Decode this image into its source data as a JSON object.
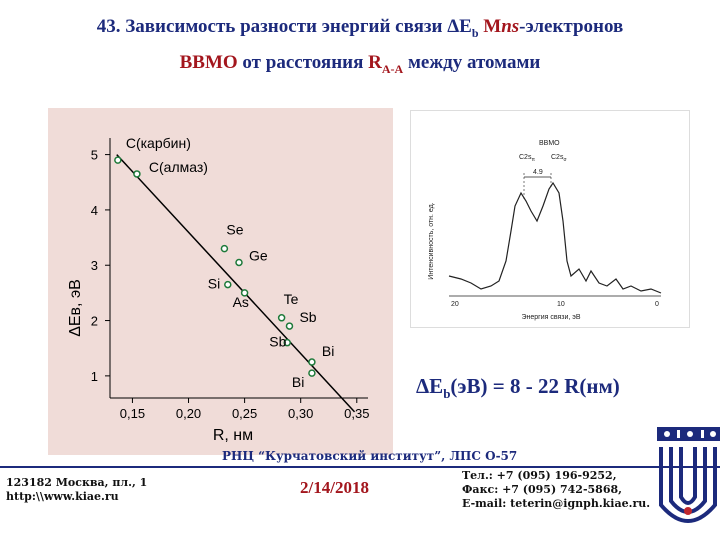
{
  "slide": {
    "title_line1_prefix": "43. Зависимость разности энергий связи ",
    "title_delta": "ΔE",
    "title_sub": "b",
    "title_m": " M",
    "title_ns": "ns",
    "title_line1_suffix": "-электронов",
    "title_vvmo": "ВВМО",
    "title_line2_mid": " от расстояния ",
    "title_r": "R",
    "title_rsub": "A-A",
    "title_line2_suffix": " между атомами",
    "formula_prefix": "ΔE",
    "formula_sub": "b",
    "formula_rest": "(эВ) = 8 - 22 R(нм)",
    "footer_institute": "РНЦ “Курчатовский институт”, ЛПС О-57",
    "address_line1": "123182 Москва, пл., 1",
    "address_line2": "http:\\\\www.kiae.ru",
    "date": "2/14/2018",
    "tel": "Тел.: +7 (095) 196-9252,",
    "fax": "Факс: +7 (095) 742-5868,",
    "email": "E-mail: teterin@ignph.kiae.ru."
  },
  "chart_data": {
    "type": "scatter",
    "xlabel": "R, нм",
    "ylabel": "ΔEв, эВ",
    "xlim": [
      0.13,
      0.36
    ],
    "ylim": [
      0.6,
      5.3
    ],
    "xticks": [
      0.15,
      0.2,
      0.25,
      0.3,
      0.35
    ],
    "xtick_labels": [
      "0,15",
      "0,20",
      "0,25",
      "0,30",
      "0,35"
    ],
    "yticks": [
      1,
      2,
      3,
      4,
      5
    ],
    "ytick_labels": [
      "1",
      "2",
      "3",
      "4",
      "5"
    ],
    "fit_line": {
      "x": [
        0.136,
        0.348
      ],
      "y": [
        5.0,
        0.35
      ]
    },
    "points": [
      {
        "label": "C(карбин)",
        "x": 0.137,
        "y": 4.9
      },
      {
        "label": "C(алмаз)",
        "x": 0.154,
        "y": 4.65
      },
      {
        "label": "Se",
        "x": 0.232,
        "y": 3.3
      },
      {
        "label": "Ge",
        "x": 0.245,
        "y": 3.05
      },
      {
        "label": "Si",
        "x": 0.235,
        "y": 2.65
      },
      {
        "label": "As",
        "x": 0.25,
        "y": 2.5
      },
      {
        "label": "Te",
        "x": 0.283,
        "y": 2.05
      },
      {
        "label": "Sb",
        "x": 0.29,
        "y": 1.9
      },
      {
        "label": "Sb",
        "x": 0.288,
        "y": 1.6
      },
      {
        "label": "Bi",
        "x": 0.31,
        "y": 1.25
      },
      {
        "label": "Bi",
        "x": 0.31,
        "y": 1.05
      }
    ]
  },
  "spectrum": {
    "label_ovmo": "ВВМО",
    "label_c2s": "C2s",
    "label_c2s_sub": "π",
    "label_c2s2": "C2s",
    "label_c2s2_sub": "σ",
    "label_gap": "4.9",
    "ylabel": "Интенсивность, отн. ед.",
    "xlabel": "Энергия связи, эВ",
    "xticks": [
      "20",
      "10",
      "0"
    ]
  }
}
